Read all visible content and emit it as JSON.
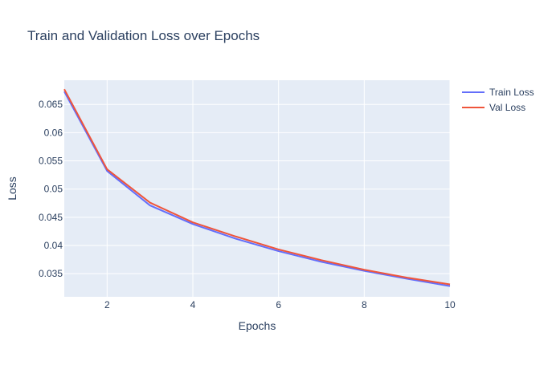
{
  "chart_data": {
    "type": "line",
    "title": "Train and Validation Loss over Epochs",
    "xlabel": "Epochs",
    "ylabel": "Loss",
    "xlim": [
      1,
      10
    ],
    "ylim": [
      0.0309,
      0.0693
    ],
    "x_ticks": [
      2,
      4,
      6,
      8,
      10
    ],
    "y_ticks": [
      0.035,
      0.04,
      0.045,
      0.05,
      0.055,
      0.06,
      0.065
    ],
    "y_tick_labels": [
      "0.035",
      "0.04",
      "0.045",
      "0.05",
      "0.055",
      "0.06",
      "0.065"
    ],
    "x": [
      1,
      2,
      3,
      4,
      5,
      6,
      7,
      8,
      9,
      10
    ],
    "series": [
      {
        "name": "Train Loss",
        "color": "#636efa",
        "values": [
          0.0673,
          0.0532,
          0.0471,
          0.0438,
          0.0412,
          0.039,
          0.0371,
          0.0355,
          0.0341,
          0.0328
        ]
      },
      {
        "name": "Val Loss",
        "color": "#ef553b",
        "values": [
          0.0677,
          0.0535,
          0.0476,
          0.0441,
          0.0416,
          0.0393,
          0.0374,
          0.0357,
          0.0343,
          0.0331
        ]
      }
    ],
    "grid": true,
    "legend_position": "top-right",
    "plot_background": "#e5ecf6"
  }
}
